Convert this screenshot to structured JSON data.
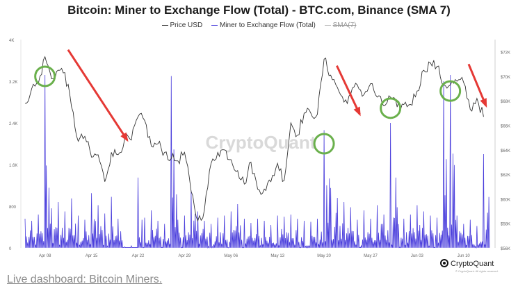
{
  "chart_data": {
    "type": "line",
    "title": "Bitcoin: Miner to Exchange Flow (Total) - BTC.com, Binance (SMA 7)",
    "legend": [
      {
        "name": "Price USD",
        "color": "#333333",
        "enabled": true
      },
      {
        "name": "Miner to Exchange Flow (Total)",
        "color": "#4b3fdc",
        "enabled": true
      },
      {
        "name": "SMA(7)",
        "color": "#bbbbbb",
        "enabled": false
      }
    ],
    "legend_position": "top-center",
    "x_ticks": [
      "Apr 08",
      "Apr 15",
      "Apr 22",
      "Apr 29",
      "May 06",
      "May 13",
      "May 20",
      "May 27",
      "Jun 03",
      "Jun 10"
    ],
    "x_range": [
      "Apr 05",
      "Jun 14"
    ],
    "y_left": {
      "label": "",
      "ticks": [
        "0",
        "800",
        "1.6K",
        "2.4K",
        "3.2K",
        "4K"
      ],
      "range": [
        0,
        4000
      ]
    },
    "y_right": {
      "label": "",
      "ticks": [
        "$56K",
        "$58K",
        "$60K",
        "$62K",
        "$64K",
        "$66K",
        "$68K",
        "$70K",
        "$72K"
      ],
      "range": [
        56000,
        73000
      ]
    },
    "grid": false,
    "watermark": "CryptoQuant",
    "price_usd": [
      [
        "Apr 05",
        67800
      ],
      [
        "Apr 06",
        69000
      ],
      [
        "Apr 07",
        69400
      ],
      [
        "Apr 08",
        71600
      ],
      [
        "Apr 09",
        69800
      ],
      [
        "Apr 10",
        70500
      ],
      [
        "Apr 11",
        70300
      ],
      [
        "Apr 12",
        67500
      ],
      [
        "Apr 13",
        64700
      ],
      [
        "Apr 14",
        65100
      ],
      [
        "Apr 15",
        63400
      ],
      [
        "Apr 16",
        63600
      ],
      [
        "Apr 17",
        61400
      ],
      [
        "Apr 18",
        63800
      ],
      [
        "Apr 19",
        63600
      ],
      [
        "Apr 20",
        64900
      ],
      [
        "Apr 21",
        64800
      ],
      [
        "Apr 22",
        66700
      ],
      [
        "Apr 23",
        66400
      ],
      [
        "Apr 24",
        64300
      ],
      [
        "Apr 25",
        64500
      ],
      [
        "Apr 26",
        63800
      ],
      [
        "Apr 27",
        63300
      ],
      [
        "Apr 28",
        63100
      ],
      [
        "Apr 29",
        63800
      ],
      [
        "Apr 30",
        60600
      ],
      [
        "May 01",
        58200
      ],
      [
        "May 02",
        59100
      ],
      [
        "May 03",
        62900
      ],
      [
        "May 04",
        63800
      ],
      [
        "May 05",
        64000
      ],
      [
        "May 06",
        63200
      ],
      [
        "May 07",
        62300
      ],
      [
        "May 08",
        61200
      ],
      [
        "May 09",
        63000
      ],
      [
        "May 10",
        60800
      ],
      [
        "May 11",
        60800
      ],
      [
        "May 12",
        61400
      ],
      [
        "May 13",
        62900
      ],
      [
        "May 14",
        61500
      ],
      [
        "May 15",
        66200
      ],
      [
        "May 16",
        65200
      ],
      [
        "May 17",
        67000
      ],
      [
        "May 18",
        67000
      ],
      [
        "May 19",
        66900
      ],
      [
        "May 20",
        71400
      ],
      [
        "May 21",
        70100
      ],
      [
        "May 22",
        69100
      ],
      [
        "May 23",
        67900
      ],
      [
        "May 24",
        68500
      ],
      [
        "May 25",
        69300
      ],
      [
        "May 26",
        68500
      ],
      [
        "May 27",
        69400
      ],
      [
        "May 28",
        68300
      ],
      [
        "May 29",
        67600
      ],
      [
        "May 30",
        68300
      ],
      [
        "May 31",
        67500
      ],
      [
        "Jun 01",
        67700
      ],
      [
        "Jun 02",
        67700
      ],
      [
        "Jun 03",
        68800
      ],
      [
        "Jun 04",
        70500
      ],
      [
        "Jun 05",
        71100
      ],
      [
        "Jun 06",
        70800
      ],
      [
        "Jun 07",
        69300
      ],
      [
        "Jun 08",
        69300
      ],
      [
        "Jun 09",
        69600
      ],
      [
        "Jun 10",
        69500
      ],
      [
        "Jun 11",
        67300
      ],
      [
        "Jun 12",
        68200
      ],
      [
        "Jun 13",
        66700
      ]
    ],
    "miner_to_exchange_flow": [
      [
        "Apr 05",
        560
      ],
      [
        "Apr 06",
        520
      ],
      [
        "Apr 07",
        640
      ],
      [
        "Apr 08",
        3320
      ],
      [
        "Apr 09",
        760
      ],
      [
        "Apr 10",
        880
      ],
      [
        "Apr 11",
        700
      ],
      [
        "Apr 12",
        950
      ],
      [
        "Apr 13",
        620
      ],
      [
        "Apr 14",
        540
      ],
      [
        "Apr 15",
        1050
      ],
      [
        "Apr 16",
        820
      ],
      [
        "Apr 17",
        660
      ],
      [
        "Apr 18",
        980
      ],
      [
        "Apr 19",
        560
      ],
      [
        "Apr 20",
        20
      ],
      [
        "Apr 21",
        40
      ],
      [
        "Apr 22",
        1350
      ],
      [
        "Apr 23",
        580
      ],
      [
        "Apr 24",
        720
      ],
      [
        "Apr 25",
        520
      ],
      [
        "Apr 26",
        460
      ],
      [
        "Apr 27",
        3300
      ],
      [
        "Apr 28",
        540
      ],
      [
        "Apr 29",
        620
      ],
      [
        "Apr 30",
        1100
      ],
      [
        "May 01",
        700
      ],
      [
        "May 02",
        520
      ],
      [
        "May 03",
        460
      ],
      [
        "May 04",
        580
      ],
      [
        "May 05",
        620
      ],
      [
        "May 06",
        700
      ],
      [
        "May 07",
        840
      ],
      [
        "May 08",
        560
      ],
      [
        "May 09",
        480
      ],
      [
        "May 10",
        560
      ],
      [
        "May 11",
        520
      ],
      [
        "May 12",
        440
      ],
      [
        "May 13",
        620
      ],
      [
        "May 14",
        600
      ],
      [
        "May 15",
        640
      ],
      [
        "May 16",
        560
      ],
      [
        "May 17",
        520
      ],
      [
        "May 18",
        500
      ],
      [
        "May 19",
        560
      ],
      [
        "May 20",
        2260
      ],
      [
        "May 21",
        1150
      ],
      [
        "May 22",
        960
      ],
      [
        "May 23",
        880
      ],
      [
        "May 24",
        780
      ],
      [
        "May 25",
        540
      ],
      [
        "May 26",
        720
      ],
      [
        "May 27",
        560
      ],
      [
        "May 28",
        820
      ],
      [
        "May 29",
        640
      ],
      [
        "May 30",
        2400
      ],
      [
        "May 31",
        780
      ],
      [
        "Jun 01",
        560
      ],
      [
        "Jun 02",
        640
      ],
      [
        "Jun 03",
        820
      ],
      [
        "Jun 04",
        700
      ],
      [
        "Jun 05",
        620
      ],
      [
        "Jun 06",
        580
      ],
      [
        "Jun 07",
        3200
      ],
      [
        "Jun 08",
        3320
      ],
      [
        "Jun 09",
        620
      ],
      [
        "Jun 10",
        460
      ],
      [
        "Jun 11",
        540
      ],
      [
        "Jun 12",
        420
      ],
      [
        "Jun 13",
        1800
      ]
    ],
    "annotations": {
      "circles_color": "#6ab04c",
      "arrows_color": "#e53935",
      "circles_at": [
        [
          "Apr 08",
          70000
        ],
        [
          "May 20",
          64500
        ],
        [
          "May 30",
          67400
        ],
        [
          "Jun 08",
          68800
        ]
      ],
      "arrows_to": [
        [
          "Apr 21",
          64800
        ],
        [
          "May 26",
          66900
        ],
        [
          "Jun 14",
          67600
        ]
      ]
    }
  },
  "brand": {
    "name": "CryptoQuant",
    "sub": "© CryptoQuant. All rights reserved."
  },
  "live_link": "Live dashboard: Bitcoin Miners."
}
